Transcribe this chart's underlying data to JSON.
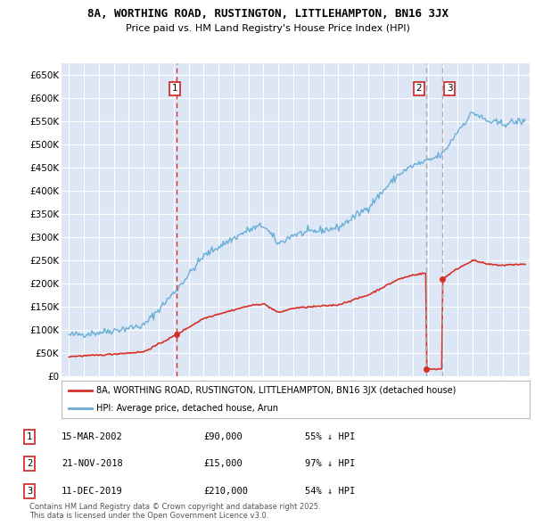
{
  "title": "8A, WORTHING ROAD, RUSTINGTON, LITTLEHAMPTON, BN16 3JX",
  "subtitle": "Price paid vs. HM Land Registry's House Price Index (HPI)",
  "bg_color": "#dce6f5",
  "plot_bg_color": "#dce6f5",
  "hpi_color": "#6baed6",
  "price_color": "#d73027",
  "vline1_color": "#d73027",
  "vline23_color": "#aaaaaa",
  "transactions": [
    {
      "label": "1",
      "date_label": "15-MAR-2002",
      "year": 2002.21,
      "price": 90000,
      "note": "55% ↓ HPI"
    },
    {
      "label": "2",
      "date_label": "21-NOV-2018",
      "year": 2018.89,
      "price": 15000,
      "note": "97% ↓ HPI"
    },
    {
      "label": "3",
      "date_label": "11-DEC-2019",
      "year": 2019.95,
      "price": 210000,
      "note": "54% ↓ HPI"
    }
  ],
  "legend_entries": [
    "8A, WORTHING ROAD, RUSTINGTON, LITTLEHAMPTON, BN16 3JX (detached house)",
    "HPI: Average price, detached house, Arun"
  ],
  "footer": "Contains HM Land Registry data © Crown copyright and database right 2025.\nThis data is licensed under the Open Government Licence v3.0.",
  "ylim": [
    0,
    675000
  ],
  "yticks": [
    0,
    50000,
    100000,
    150000,
    200000,
    250000,
    300000,
    350000,
    400000,
    450000,
    500000,
    550000,
    600000,
    650000
  ],
  "xlim_start": 1994.5,
  "xlim_end": 2025.8
}
